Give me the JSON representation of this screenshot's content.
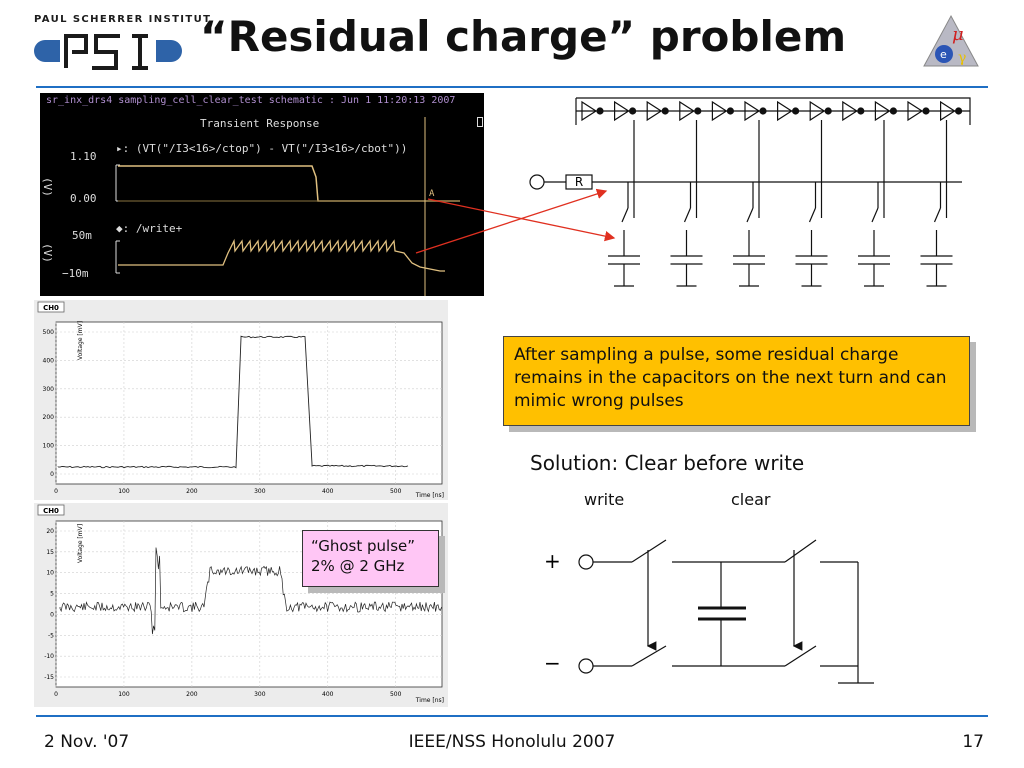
{
  "header": {
    "institute_name": "PAUL SCHERRER INSTITUT",
    "logo_text": "PSI",
    "title": "“Residual charge” problem",
    "right_logo_text": "μ e γ"
  },
  "simulation": {
    "window_title": "sr_inx_drs4 sampling_cell_clear_test schematic : Jun  1 11:20:13 2007",
    "subtitle": "Transient Response",
    "trace1_expr": "▸: (VT(\"/I3<16>/ctop\") - VT(\"/I3<16>/cbot\"))",
    "trace1_ytop": "1.10",
    "trace1_ybot": "0.00",
    "trace1_unit": "(V)",
    "trace2_expr": "◆: /write+",
    "trace2_ytop": "50m",
    "trace2_ybot": "−10m",
    "trace2_unit": "(V)",
    "cursor_label": "A"
  },
  "circuit": {
    "resistor_label": "R"
  },
  "plots": {
    "plot1": {
      "tag": "CH0",
      "ylabel": "Voltage [mV]",
      "xlabel": "Time [ns]",
      "yticks": [
        "500",
        "400",
        "300",
        "200",
        "100",
        "0"
      ],
      "xticks": [
        "0",
        "100",
        "200",
        "300",
        "400",
        "500"
      ]
    },
    "plot2": {
      "tag": "CH0",
      "ylabel": "Voltage [mV]",
      "xlabel": "Time [ns]",
      "yticks": [
        "20",
        "15",
        "10",
        "5",
        "0",
        "-5",
        "-10",
        "-15"
      ],
      "xticks": [
        "0",
        "100",
        "200",
        "300",
        "400",
        "500"
      ]
    }
  },
  "callouts": {
    "residual_text": "After sampling a pulse, some residual charge remains in the capacitors on the next turn and can mimic wrong pulses",
    "ghost_line1": "“Ghost pulse”",
    "ghost_line2": "2% @ 2 GHz"
  },
  "solution": {
    "text": "Solution: Clear before write",
    "write_label": "write",
    "clear_label": "clear",
    "plus": "+",
    "minus": "−"
  },
  "footer": {
    "date": "2 Nov. '07",
    "conference": "IEEE/NSS Honolulu 2007",
    "page": "17"
  },
  "colors": {
    "rule": "#1f6fc4",
    "callout_yellow": "#ffc000",
    "callout_pink": "#ffc6f5",
    "trace": "#e0c080",
    "arrow": "#e03020"
  }
}
